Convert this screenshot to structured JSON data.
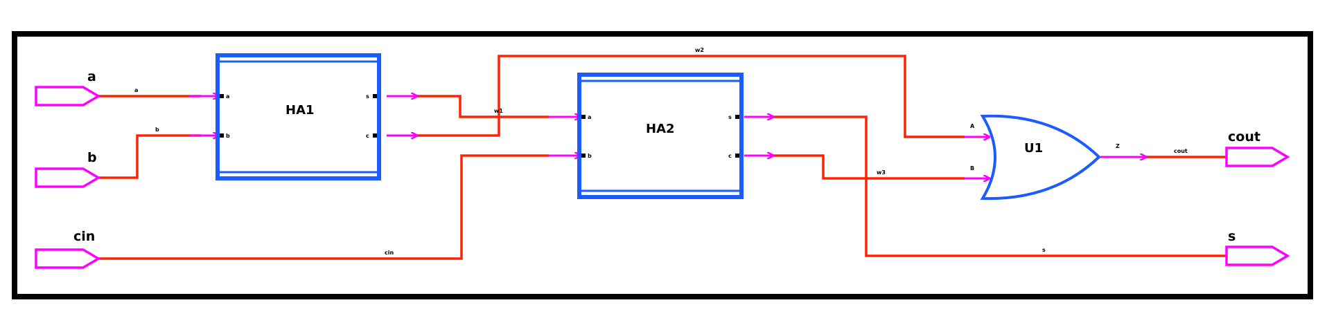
{
  "colors": {
    "wire": "#ff2200",
    "port": "#ff00ff",
    "instance": "#1a5cff",
    "frame": "#000000"
  },
  "ports": {
    "a": "a",
    "b": "b",
    "cin": "cin",
    "cout": "cout",
    "s": "s"
  },
  "nets": {
    "a": "a",
    "b": "b",
    "w1": "w1",
    "w2": "w2",
    "w3": "w3",
    "cin": "cin",
    "cout": "cout",
    "s": "s"
  },
  "instances": {
    "ha1": {
      "name": "HA1",
      "pins": [
        "a",
        "b",
        "s",
        "c"
      ]
    },
    "ha2": {
      "name": "HA2",
      "pins": [
        "a",
        "b",
        "s",
        "c"
      ]
    },
    "u1": {
      "name": "U1",
      "pins": [
        "A",
        "B",
        "Z"
      ]
    }
  }
}
